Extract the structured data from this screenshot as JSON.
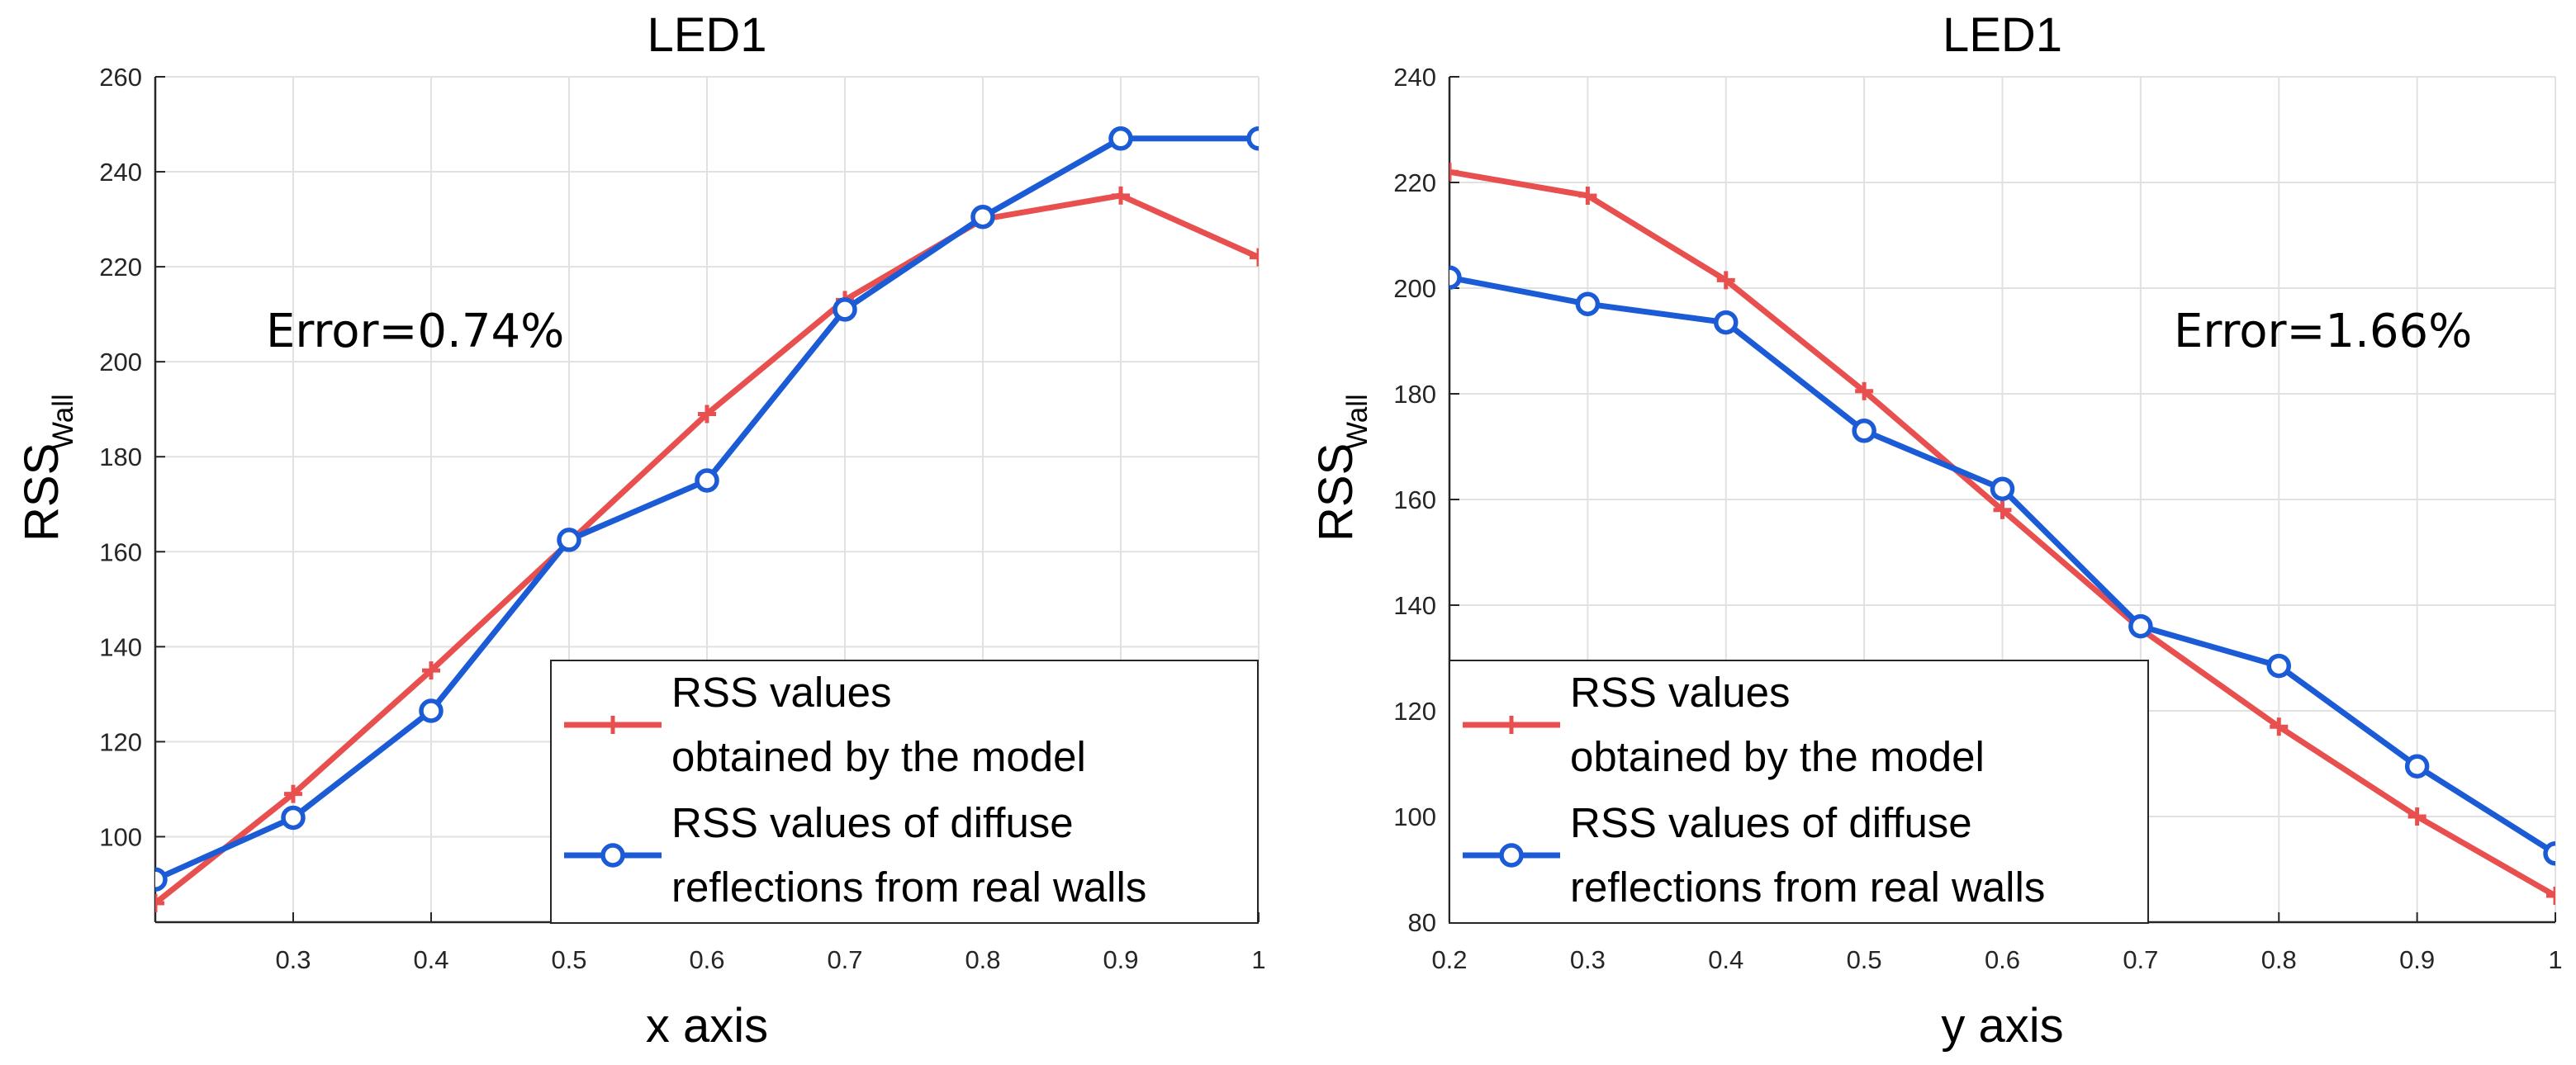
{
  "colors": {
    "model": "#e8504f",
    "real": "#1c5bd6",
    "grid": "#e1e1e1",
    "axis": "#262626"
  },
  "chart_data": [
    {
      "type": "line",
      "title": "LED1",
      "xlabel": "x axis",
      "ylabel_main": "RSS",
      "ylabel_sub": "Wall",
      "xlim": [
        0.2,
        1.0
      ],
      "ylim": [
        82,
        260
      ],
      "xticks": [
        0.3,
        0.4,
        0.5,
        0.6,
        0.7,
        0.8,
        0.9,
        1.0
      ],
      "xtick_labels": [
        "0.3",
        "0.4",
        "0.5",
        "0.6",
        "0.7",
        "0.8",
        "0.9",
        "1"
      ],
      "yticks": [
        100,
        120,
        140,
        160,
        180,
        200,
        220,
        240,
        260
      ],
      "ytick_labels": [
        "100",
        "120",
        "140",
        "160",
        "180",
        "200",
        "220",
        "240",
        "260"
      ],
      "annotation": "Error=0.74%",
      "annotation_pos": "upper-left",
      "legend_pos": "bottom-right",
      "x": [
        0.2,
        0.3,
        0.4,
        0.5,
        0.6,
        0.7,
        0.8,
        0.9,
        1.0
      ],
      "series": [
        {
          "name": "RSS values obtained by the model",
          "legend_lines": [
            "RSS values",
            "obtained by the model"
          ],
          "marker": "plus",
          "color_key": "model",
          "values": [
            86,
            109,
            135,
            162,
            189,
            213,
            230,
            235,
            222
          ]
        },
        {
          "name": "RSS values of diffuse reflections from real walls",
          "legend_lines": [
            "RSS values of diffuse",
            "reflections from real walls"
          ],
          "marker": "circle",
          "color_key": "real",
          "values": [
            91,
            104,
            126.5,
            162.5,
            175,
            211,
            230.5,
            247,
            247
          ]
        }
      ]
    },
    {
      "type": "line",
      "title": "LED1",
      "xlabel": "y axis",
      "ylabel_main": "RSS",
      "ylabel_sub": "Wall",
      "xlim": [
        0.2,
        1.0
      ],
      "ylim": [
        80,
        240
      ],
      "xticks": [
        0.2,
        0.3,
        0.4,
        0.5,
        0.6,
        0.7,
        0.8,
        0.9,
        1.0
      ],
      "xtick_labels": [
        "0.2",
        "0.3",
        "0.4",
        "0.5",
        "0.6",
        "0.7",
        "0.8",
        "0.9",
        "1"
      ],
      "yticks": [
        80,
        100,
        120,
        140,
        160,
        180,
        200,
        220,
        240
      ],
      "ytick_labels": [
        "80",
        "100",
        "120",
        "140",
        "160",
        "180",
        "200",
        "220",
        "240"
      ],
      "annotation": "Error=1.66%",
      "annotation_pos": "upper-right",
      "legend_pos": "bottom-left",
      "x": [
        0.2,
        0.3,
        0.4,
        0.5,
        0.6,
        0.7,
        0.8,
        0.9,
        1.0
      ],
      "series": [
        {
          "name": "RSS values obtained by the model",
          "legend_lines": [
            "RSS values",
            "obtained by the model"
          ],
          "marker": "plus",
          "color_key": "model",
          "values": [
            222,
            217.5,
            201.5,
            180.5,
            158,
            135.5,
            117,
            100,
            85
          ]
        },
        {
          "name": "RSS values of diffuse reflections from real walls",
          "legend_lines": [
            "RSS values of diffuse",
            "reflections from real walls"
          ],
          "marker": "circle",
          "color_key": "real",
          "values": [
            202,
            197,
            193.5,
            173,
            162,
            136,
            128.5,
            109.5,
            93
          ]
        }
      ]
    }
  ]
}
